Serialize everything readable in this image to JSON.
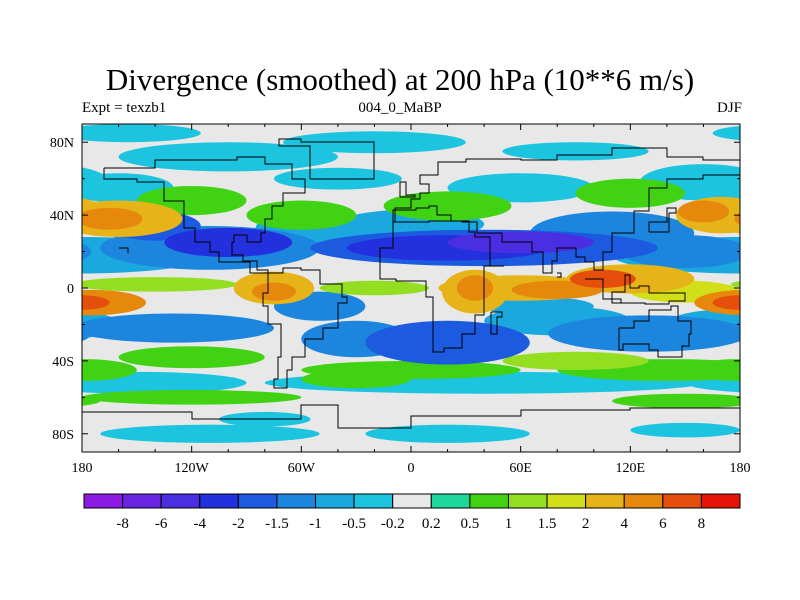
{
  "title": "Divergence (smoothed) at 200 hPa (10**6 m/s)",
  "expt_label": "Expt = texzb1",
  "subtitle": "004_0_MaBP",
  "season": "DJF",
  "map": {
    "projection": "cylindrical-equidistant",
    "lon_range": [
      -180,
      180
    ],
    "lat_range": [
      -90,
      90
    ],
    "lon_ticks": [
      {
        "value": -180,
        "label": "180"
      },
      {
        "value": -120,
        "label": "120W"
      },
      {
        "value": -60,
        "label": "60W"
      },
      {
        "value": 0,
        "label": "0"
      },
      {
        "value": 60,
        "label": "60E"
      },
      {
        "value": 120,
        "label": "120E"
      },
      {
        "value": 180,
        "label": "180"
      }
    ],
    "lat_ticks": [
      {
        "value": 80,
        "label": "80N"
      },
      {
        "value": 40,
        "label": "40N"
      },
      {
        "value": 0,
        "label": "0"
      },
      {
        "value": -40,
        "label": "40S"
      },
      {
        "value": -80,
        "label": "80S"
      }
    ],
    "background_color": "#e8e8e8"
  },
  "colorbar": {
    "labels": [
      "-8",
      "-6",
      "-4",
      "-2",
      "-1.5",
      "-1",
      "-0.5",
      "-0.2",
      "0.2",
      "0.5",
      "1",
      "1.5",
      "2",
      "4",
      "6",
      "8"
    ],
    "colors": [
      "#8b1ae3",
      "#6a24e4",
      "#4a2ee2",
      "#2230dd",
      "#1c5ae0",
      "#1c86de",
      "#1aa8de",
      "#1cc4df",
      "#e8e8e8",
      "#1cd89a",
      "#42d214",
      "#94de22",
      "#d2de18",
      "#e6b418",
      "#e6880c",
      "#e64e0c",
      "#e61408"
    ]
  },
  "chart_data": {
    "type": "heatmap",
    "title": "Divergence (smoothed) at 200 hPa (10**6 m/s)",
    "variable": "Divergence (smoothed)",
    "level": "200 hPa",
    "units": "10**6 m/s",
    "season": "DJF",
    "levels": [
      -8,
      -6,
      -4,
      -2,
      -1.5,
      -1,
      -0.5,
      -0.2,
      0.2,
      0.5,
      1,
      1.5,
      2,
      4,
      6,
      8
    ],
    "features": [
      {
        "lon": -95,
        "lat": 25,
        "value": -4
      },
      {
        "lon": 25,
        "lat": 22,
        "value": -4
      },
      {
        "lon": 100,
        "lat": 30,
        "value": -2
      },
      {
        "lon": 20,
        "lat": -30,
        "value": -4
      },
      {
        "lon": -35,
        "lat": -25,
        "value": -1.5
      },
      {
        "lon": -165,
        "lat": 35,
        "value": 2
      },
      {
        "lon": 170,
        "lat": 40,
        "value": 2
      },
      {
        "lon": 65,
        "lat": 0,
        "value": 4
      },
      {
        "lon": 120,
        "lat": 5,
        "value": 4
      },
      {
        "lon": 35,
        "lat": 0,
        "value": 4
      },
      {
        "lon": -75,
        "lat": 0,
        "value": 4
      },
      {
        "lon": -175,
        "lat": -10,
        "value": 4
      },
      {
        "lon": -130,
        "lat": 35,
        "value": -2
      },
      {
        "lon": 10,
        "lat": 5,
        "value": -2
      }
    ]
  }
}
